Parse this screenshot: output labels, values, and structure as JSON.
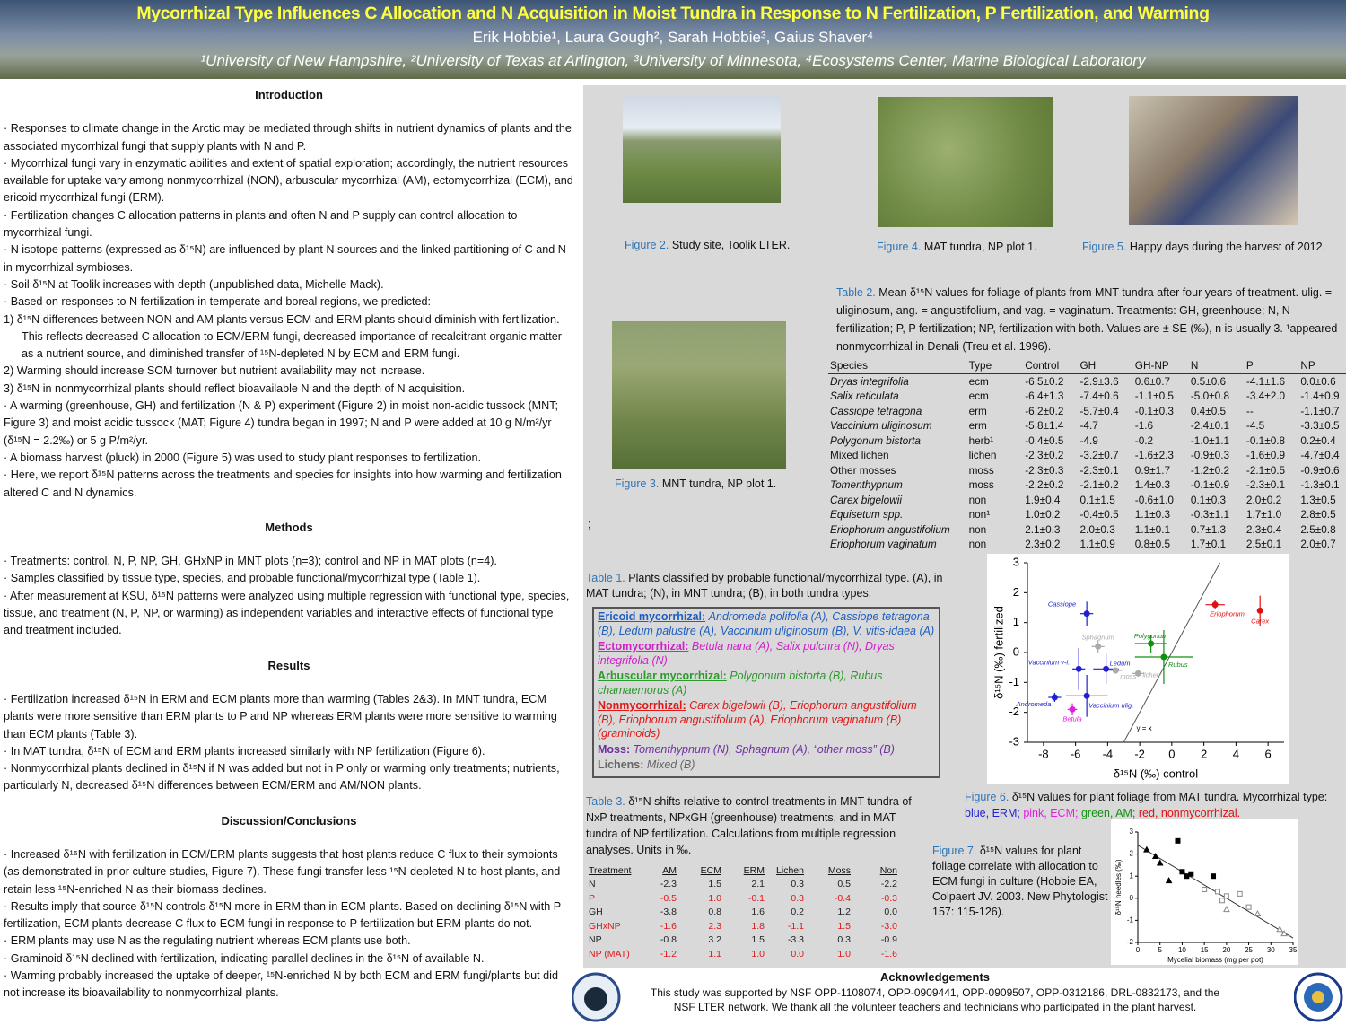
{
  "header": {
    "title": "Mycorrhizal Type Influences C Allocation and N Acquisition in Moist Tundra in Response to N Fertilization, P Fertilization, and Warming",
    "authors": "Erik Hobbie¹, Laura Gough², Sarah Hobbie³, Gaius Shaver⁴",
    "affiliations": "¹University of New Hampshire, ²University of Texas at Arlington,  ³University of Minnesota, ⁴Ecosystems Center, Marine Biological Laboratory"
  },
  "sections": {
    "introduction": {
      "heading": "Introduction",
      "items": [
        "· Responses to climate change in the Arctic may be mediated through shifts in nutrient dynamics of plants and the associated mycorrhizal fungi that supply plants with N and P.",
        "· Mycorrhizal fungi vary in enzymatic abilities and extent of spatial exploration; accordingly, the nutrient resources available for uptake vary among nonmycorrhizal (NON), arbuscular mycorrhizal (AM), ectomycorrhizal (ECM), and ericoid mycorrhizal fungi (ERM).",
        "· Fertilization changes C allocation patterns in plants and often N and P supply can control allocation to mycorrhizal fungi.",
        "· N isotope patterns (expressed as δ¹⁵N) are influenced by plant N sources and the linked partitioning of C and N in mycorrhizal symbioses.",
        "· Soil δ¹⁵N at Toolik increases with depth (unpublished  data, Michelle Mack).",
        "· Based on responses to N fertilization in temperate and boreal regions, we predicted:",
        "1)  δ¹⁵N differences between NON and AM plants versus ECM and ERM plants should  diminish with fertilization. This reflects decreased C allocation to ECM/ERM fungi, decreased importance of recalcitrant organic matter as a nutrient source, and diminished transfer of ¹⁵N-depleted N by ECM and ERM fungi.",
        "2)  Warming should increase SOM turnover but nutrient availability may not increase.",
        "3)  δ¹⁵N in nonmycorrhizal plants  should reflect bioavailable  N and the depth of N acquisition.",
        "· A warming (greenhouse, GH) and fertilization (N & P) experiment (Figure 2) in moist non-acidic tussock (MNT; Figure 3) and moist acidic tussock (MAT; Figure 4)  tundra began in 1997; N and P were added at 10 g N/m²/yr (δ¹⁵N = 2.2‰) or 5 g P/m²/yr.",
        "· A biomass harvest (pluck) in 2000 (Figure 5) was used to study plant responses to fertilization.",
        "· Here, we report δ¹⁵N patterns across the treatments and species for insights into how warming and fertilization altered C and N dynamics."
      ]
    },
    "methods": {
      "heading": "Methods",
      "items": [
        "· Treatments: control, N, P, NP, GH, GHxNP in MNT plots (n=3); control and NP in MAT plots (n=4).",
        "· Samples classified by tissue type, species, and probable functional/mycorrhizal type (Table 1).",
        "· After measurement at KSU, δ¹⁵N patterns were analyzed using multiple regression with functional type, species, tissue, and treatment (N, P, NP, or warming) as independent variables and interactive effects of functional type and treatment included."
      ]
    },
    "results": {
      "heading": "Results",
      "items": [
        "· Fertilization increased δ¹⁵N in ERM and ECM plants more than warming (Tables 2&3). In MNT tundra, ECM plants were more sensitive than ERM plants to P and NP whereas ERM plants were more sensitive to warming than ECM plants (Table 3).",
        "· In MAT tundra, δ¹⁵N of ECM and ERM plants increased similarly with NP fertilization (Figure 6).",
        "· Nonmycorrhizal plants declined in δ¹⁵N if N was added but not in P only or warming only treatments; nutrients, particularly N, decreased δ¹⁵N differences between ECM/ERM and AM/NON plants."
      ]
    },
    "discussion": {
      "heading": "Discussion/Conclusions",
      "items": [
        "· Increased δ¹⁵N with fertilization in ECM/ERM plants suggests that host plants reduce C flux to their symbionts (as demonstrated in prior culture studies, Figure 7). These fungi transfer less ¹⁵N-depleted N to host plants, and retain less ¹⁵N-enriched N as their biomass declines.",
        "· Results imply that source δ¹⁵N controls δ¹⁵N more in ERM than in ECM plants. Based on declining δ¹⁵N with P fertilization, ECM plants decrease C flux to ECM fungi in response to P fertilization but ERM plants do not.",
        "· ERM plants may use N as the regulating nutrient whereas ECM plants use both.",
        "· Graminoid δ¹⁵N  declined with fertilization, indicating parallel declines in the δ¹⁵N  of available N.",
        "· Warming probably increased the uptake of deeper, ¹⁵N-enriched N by both ECM and ERM fungi/plants but did not increase its bioavailability to nonmycorrhizal plants."
      ]
    }
  },
  "photos": {
    "figure2": {
      "label": "Figure 2.",
      "text": "Study site, Toolik LTER."
    },
    "figure3": {
      "label": "Figure 3.",
      "text": "MNT tundra, NP plot 1."
    },
    "figure4": {
      "label": "Figure 4.",
      "text": "MAT tundra, NP plot 1."
    },
    "figure5": {
      "label": "Figure 5.",
      "text": "Happy days during the harvest of 2012."
    }
  },
  "margin_mark": ";",
  "table2": {
    "label": "Table 2.",
    "caption": "Mean δ¹⁵N values for foliage of plants from MNT tundra after four years of treatment. ulig. = uliginosum, ang. = angustifolium, and vag. = vaginatum. Treatments: GH, greenhouse; N, N fertilization; P, P fertilization; NP, fertilization with both. Values are ± SE (‰), n is usually 3. ¹appeared nonmycorrhizal in Denali (Treu et al. 1996).",
    "columns": [
      "Species",
      "Type",
      "Control",
      "GH",
      "GH-NP",
      "N",
      "P",
      "NP"
    ],
    "rows": [
      {
        "italic": true,
        "cells": [
          "Dryas integrifolia",
          "ecm",
          "-6.5±0.2",
          "-2.9±3.6",
          "0.6±0.7",
          "0.5±0.6",
          "-4.1±1.6",
          "0.0±0.6"
        ]
      },
      {
        "italic": true,
        "cells": [
          "Salix reticulata",
          "ecm",
          "-6.4±1.3",
          "-7.4±0.6",
          "-1.1±0.5",
          "-5.0±0.8",
          "-3.4±2.0",
          "-1.4±0.9"
        ]
      },
      {
        "italic": true,
        "cells": [
          "Cassiope tetragona",
          "erm",
          "-6.2±0.2",
          "-5.7±0.4",
          "-0.1±0.3",
          "0.4±0.5",
          "--",
          "-1.1±0.7"
        ]
      },
      {
        "italic": true,
        "cells": [
          "Vaccinium uliginosum",
          "erm",
          "-5.8±1.4",
          "-4.7",
          "-1.6",
          "-2.4±0.1",
          "-4.5",
          "-3.3±0.5"
        ]
      },
      {
        "italic": true,
        "cells": [
          "Polygonum bistorta",
          "herb¹",
          "-0.4±0.5",
          "-4.9",
          "-0.2",
          "-1.0±1.1",
          "-0.1±0.8",
          "0.2±0.4"
        ]
      },
      {
        "italic": false,
        "cells": [
          "Mixed lichen",
          "lichen",
          "-2.3±0.2",
          "-3.2±0.7",
          "-1.6±2.3",
          "-0.9±0.3",
          "-1.6±0.9",
          "-4.7±0.4"
        ]
      },
      {
        "italic": false,
        "cells": [
          "Other mosses",
          "moss",
          "-2.3±0.3",
          "-2.3±0.1",
          "0.9±1.7",
          "-1.2±0.2",
          "-2.1±0.5",
          "-0.9±0.6"
        ]
      },
      {
        "italic": true,
        "cells": [
          "Tomenthypnum",
          "moss",
          "-2.2±0.2",
          "-2.1±0.2",
          "1.4±0.3",
          "-0.1±0.9",
          "-2.3±0.1",
          "-1.3±0.1"
        ]
      },
      {
        "italic": true,
        "cells": [
          "Carex bigelowii",
          "non",
          "1.9±0.4",
          "0.1±1.5",
          "-0.6±1.0",
          "0.1±0.3",
          "2.0±0.2",
          "1.3±0.5"
        ]
      },
      {
        "italic": true,
        "cells": [
          "Equisetum spp.",
          "non¹",
          "1.0±0.2",
          "-0.4±0.5",
          "1.1±0.3",
          "-0.3±1.1",
          "1.7±1.0",
          "2.8±0.5"
        ]
      },
      {
        "italic": true,
        "cells": [
          "Eriophorum angustifolium",
          "non",
          "2.1±0.3",
          "2.0±0.3",
          "1.1±0.1",
          "0.7±1.3",
          "2.3±0.4",
          "2.5±0.8"
        ]
      },
      {
        "italic": true,
        "cells": [
          "Eriophorum vaginatum",
          "non",
          "2.3±0.2",
          "1.1±0.9",
          "0.8±0.5",
          "1.7±0.1",
          "2.5±0.1",
          "2.0±0.7"
        ]
      }
    ]
  },
  "table1": {
    "label": "Table 1.",
    "caption": "Plants classified by probable functional/mycorrhizal type. (A), in MAT tundra; (N), in MNT tundra; (B), in both tundra types.",
    "entries": [
      {
        "name": "Ericoid mycorrhizal:",
        "text": "Andromeda polifolia (A), Cassiope tetragona (B), Ledum palustre (A), Vaccinium uliginosum (B), V. vitis-idaea (A)",
        "color": "#1f5fbf",
        "underline": true
      },
      {
        "name": "Ectomycorrhizal:",
        "text": "Betula nana (A), Salix pulchra (N), Dryas integrifolia (N)",
        "color": "#d020c8",
        "underline": true
      },
      {
        "name": "Arbuscular mycorrhizal:",
        "text": "Polygonum bistorta (B), Rubus chamaemorus (A)",
        "color": "#2a9a2a",
        "underline": true
      },
      {
        "name": "Nonmycorrhizal:",
        "text": "Carex bigelowii (B), Eriophorum angustifolium (B), Eriophorum angustifolium (A), Eriophorum vaginatum (B) (graminoids)",
        "color": "#e01818",
        "underline": true
      },
      {
        "name": "Moss:",
        "text": "Tomenthypnum (N), Sphagnum  (A), “other moss” (B)",
        "color": "#7030a0",
        "underline": false
      },
      {
        "name": "Lichens:",
        "text": "Mixed (B)",
        "color": "#666666",
        "underline": false
      }
    ]
  },
  "table3": {
    "label": "Table 3.",
    "caption": "δ¹⁵N shifts relative to control treatments in MNT tundra of NxP treatments, NPxGH (greenhouse) treatments, and in MAT tundra of NP fertilization. Calculations from multiple regression analyses. Units in ‰.",
    "columns": [
      "Treatment",
      "AM",
      "ECM",
      "ERM",
      "Lichen",
      "Moss",
      "Non"
    ],
    "rows": [
      {
        "color": "#222222",
        "cells": [
          "N",
          "-2.3",
          "1.5",
          "2.1",
          "0.3",
          "0.5",
          "-2.2"
        ]
      },
      {
        "color": "#e01818",
        "cells": [
          "P",
          "-0.5",
          "1.0",
          "-0.1",
          "0.3",
          "-0.4",
          "-0.3"
        ]
      },
      {
        "color": "#222222",
        "cells": [
          "GH",
          "-3.8",
          "0.8",
          "1.6",
          "0.2",
          "1.2",
          "0.0"
        ]
      },
      {
        "color": "#e01818",
        "cells": [
          "GHxNP",
          "-1.6",
          "2.3",
          "1.8",
          "-1.1",
          "1.5",
          "-3.0"
        ]
      },
      {
        "color": "#222222",
        "cells": [
          "NP",
          "-0.8",
          "3.2",
          "1.5",
          "-3.3",
          "0.3",
          "-0.9"
        ]
      },
      {
        "color": "#e01818",
        "cells": [
          "NP (MAT)",
          "-1.2",
          "1.1",
          "1.0",
          "0.0",
          "1.0",
          "-1.6"
        ]
      }
    ]
  },
  "figure6": {
    "type": "scatter",
    "label": "Figure 6.",
    "caption": "δ¹⁵N values for plant foliage from MAT tundra. Mycorrhizal type:",
    "legend": [
      {
        "text": "blue, ERM;",
        "color": "#2020d0"
      },
      {
        "text": "pink, ECM;",
        "color": "#e020e0"
      },
      {
        "text": "green, AM;",
        "color": "#109010"
      },
      {
        "text": "red, nonmycorrhizal.",
        "color": "#e01010"
      }
    ],
    "x_label": "δ¹⁵N (‰) control",
    "y_label": "δ¹⁵N (‰) fertilized",
    "reference_line": "y = x",
    "xlim": [
      -9,
      7
    ],
    "ylim": [
      -3,
      3
    ],
    "xticks": [
      -8,
      -6,
      -4,
      -2,
      0,
      2,
      4,
      6
    ],
    "yticks": [
      -3,
      -2,
      -1,
      0,
      1,
      2,
      3
    ],
    "points": [
      {
        "name": "Cassiope",
        "x": -5.3,
        "y": 1.3,
        "xerr": 0.4,
        "yerr": 0.4,
        "color": "#2020d0"
      },
      {
        "name": "Sphagnum",
        "x": -4.6,
        "y": 0.2,
        "xerr": 0.4,
        "yerr": 0.2,
        "color": "#aaaaaa"
      },
      {
        "name": "Vaccinium v-i.",
        "x": -5.8,
        "y": -0.55,
        "xerr": 0.4,
        "yerr": 0.7,
        "color": "#2020d0"
      },
      {
        "name": "Ledum",
        "x": -4.1,
        "y": -0.55,
        "xerr": 0.8,
        "yerr": 0.5,
        "color": "#2020d0"
      },
      {
        "name": "moss",
        "x": -3.5,
        "y": -0.6,
        "xerr": 0.4,
        "yerr": 0.1,
        "color": "#aaaaaa"
      },
      {
        "name": "lichen",
        "x": -2.1,
        "y": -0.7,
        "xerr": 0.4,
        "yerr": 0.1,
        "color": "#aaaaaa"
      },
      {
        "name": "Andromeda",
        "x": -7.3,
        "y": -1.5,
        "xerr": 0.4,
        "yerr": 0.15,
        "color": "#2020d0"
      },
      {
        "name": "Vaccinium ulig.",
        "x": -5.3,
        "y": -1.45,
        "xerr": 1.3,
        "yerr": 0.7,
        "color": "#2020d0"
      },
      {
        "name": "Betula",
        "x": -6.2,
        "y": -1.9,
        "xerr": 0.3,
        "yerr": 0.2,
        "color": "#e020e0"
      },
      {
        "name": "Polygonum",
        "x": -1.3,
        "y": 0.3,
        "xerr": 1.0,
        "yerr": 0.3,
        "color": "#109010"
      },
      {
        "name": "Rubus",
        "x": -0.5,
        "y": -0.15,
        "xerr": 1.8,
        "yerr": 0.9,
        "color": "#109010"
      },
      {
        "name": "Eriophorum",
        "x": 2.7,
        "y": 1.6,
        "xerr": 0.6,
        "yerr": 0.15,
        "color": "#e01010"
      },
      {
        "name": "Carex",
        "x": 5.5,
        "y": 1.4,
        "xerr": 0.1,
        "yerr": 0.5,
        "color": "#e01010"
      }
    ]
  },
  "figure7": {
    "type": "scatter",
    "label": "Figure 7.",
    "caption": "δ¹⁵N values for plant foliage correlate with allocation to ECM fungi in culture (Hobbie EA, Colpaert JV. 2003. New Phytologist 157: 115-126).",
    "x_label": "Mycelial biomass (mg per pot)",
    "y_label": "δ¹⁵N needles (‰)",
    "xlim": [
      0,
      35
    ],
    "ylim": [
      -2,
      3
    ],
    "xticks": [
      0,
      5,
      10,
      15,
      20,
      25,
      30,
      35
    ],
    "yticks": [
      -2,
      -1,
      0,
      1,
      2,
      3
    ],
    "fit": {
      "intercept": 2.4,
      "slope": -0.12
    },
    "points": [
      {
        "x": 2,
        "y": 2.2,
        "marker": "filled-triangle"
      },
      {
        "x": 4,
        "y": 1.9,
        "marker": "filled-triangle"
      },
      {
        "x": 5,
        "y": 1.6,
        "marker": "filled-triangle"
      },
      {
        "x": 7,
        "y": 0.8,
        "marker": "filled-triangle"
      },
      {
        "x": 9,
        "y": 2.6,
        "marker": "filled-square"
      },
      {
        "x": 10,
        "y": 1.2,
        "marker": "filled-square"
      },
      {
        "x": 11,
        "y": 1.0,
        "marker": "filled-square"
      },
      {
        "x": 12,
        "y": 1.1,
        "marker": "filled-square"
      },
      {
        "x": 17,
        "y": 1.0,
        "marker": "filled-square"
      },
      {
        "x": 15,
        "y": 0.4,
        "marker": "open-square"
      },
      {
        "x": 18,
        "y": 0.3,
        "marker": "open-square"
      },
      {
        "x": 19,
        "y": -0.1,
        "marker": "open-square"
      },
      {
        "x": 20,
        "y": 0.1,
        "marker": "open-square"
      },
      {
        "x": 23,
        "y": 0.2,
        "marker": "open-square"
      },
      {
        "x": 25,
        "y": -0.4,
        "marker": "open-square"
      },
      {
        "x": 20,
        "y": -0.5,
        "marker": "open-triangle"
      },
      {
        "x": 27,
        "y": -0.7,
        "marker": "open-triangle"
      },
      {
        "x": 32,
        "y": -1.4,
        "marker": "open-triangle"
      },
      {
        "x": 33,
        "y": -1.6,
        "marker": "open-triangle"
      }
    ]
  },
  "acknowledgements": {
    "heading": "Acknowledgements",
    "text": "This study was supported by NSF OPP-1108074,  OPP-0909441, OPP-0909507, OPP-0312186, DRL-0832173, and the NSF LTER network. We thank all the volunteer teachers and technicians who participated in the plant harvest."
  }
}
